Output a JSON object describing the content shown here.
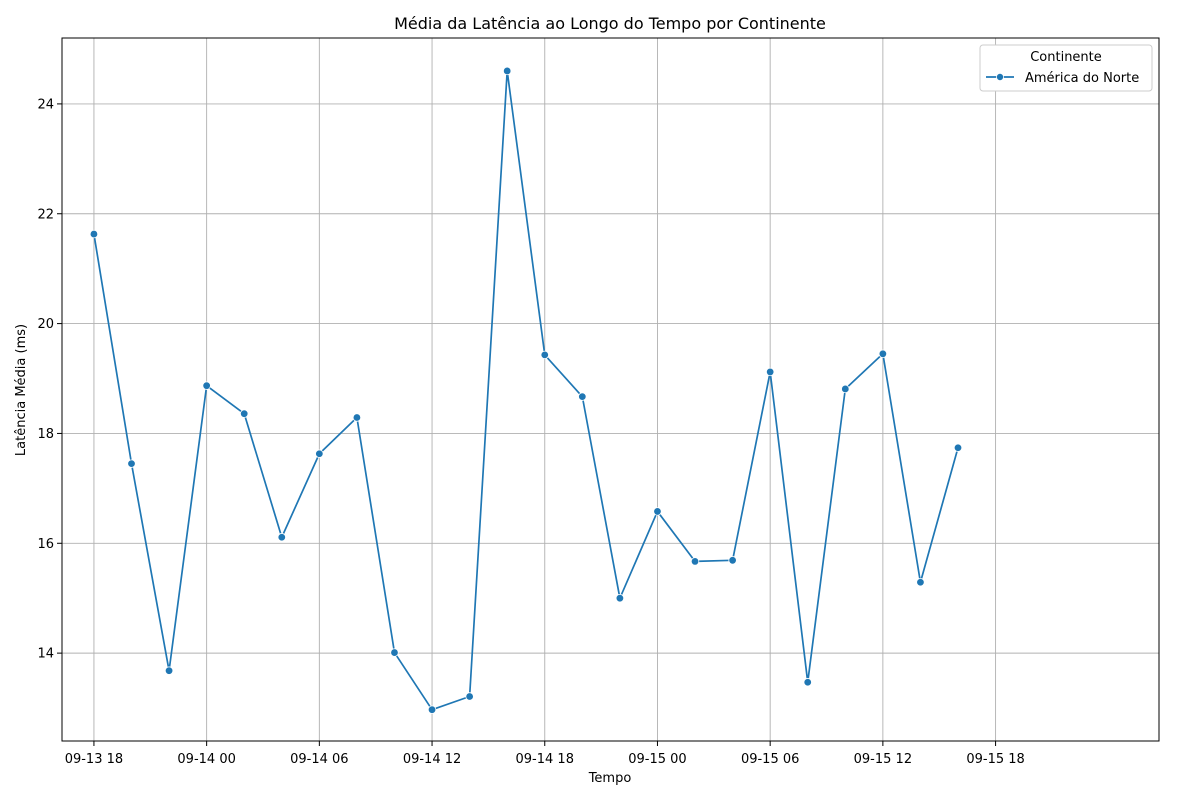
{
  "chart_data": {
    "type": "line",
    "title": "Média da Latência ao Longo do Tempo por Continente",
    "xlabel": "Tempo",
    "ylabel": "Latência Média (ms)",
    "grid": true,
    "legend_placement": "top-right",
    "legend_title": "Continente",
    "x_ticks": [
      "09-13 18",
      "09-14 00",
      "09-14 06",
      "09-14 12",
      "09-14 18",
      "09-15 00",
      "09-15 06",
      "09-15 12",
      "09-15 18"
    ],
    "y_ticks": [
      "14",
      "16",
      "18",
      "20",
      "22",
      "24"
    ],
    "ylim": [
      12.4,
      25.2
    ],
    "x": [
      "2024-09-13 18:00",
      "2024-09-13 20:00",
      "2024-09-13 22:00",
      "2024-09-14 00:00",
      "2024-09-14 02:00",
      "2024-09-14 04:00",
      "2024-09-14 06:00",
      "2024-09-14 08:00",
      "2024-09-14 10:00",
      "2024-09-14 12:00",
      "2024-09-14 14:00",
      "2024-09-14 16:00",
      "2024-09-14 18:00",
      "2024-09-14 20:00",
      "2024-09-14 22:00",
      "2024-09-15 00:00",
      "2024-09-15 02:00",
      "2024-09-15 04:00",
      "2024-09-15 06:00",
      "2024-09-15 08:00",
      "2024-09-15 10:00",
      "2024-09-15 12:00",
      "2024-09-15 14:00",
      "2024-09-15 16:00"
    ],
    "series": [
      {
        "name": "América do Norte",
        "color": "#1f77b4",
        "values": [
          21.63,
          17.45,
          13.68,
          18.87,
          18.36,
          16.11,
          17.63,
          18.29,
          14.01,
          12.97,
          13.21,
          24.6,
          19.43,
          18.67,
          15.0,
          16.58,
          15.67,
          15.69,
          19.12,
          13.47,
          18.81,
          19.45,
          15.29,
          17.74
        ]
      }
    ]
  }
}
